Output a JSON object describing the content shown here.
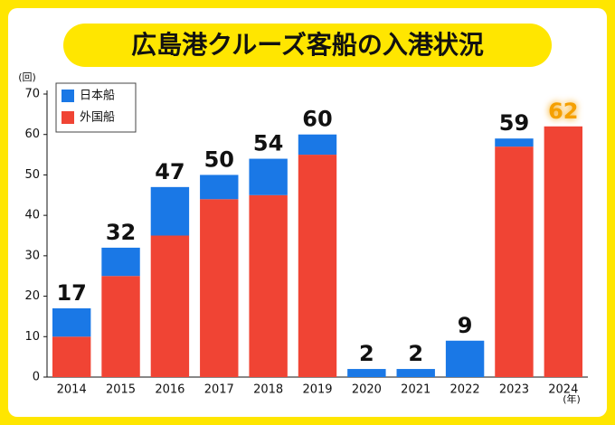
{
  "chart_data": {
    "type": "stacked_bar",
    "title": "広島港クルーズ客船の入港状況",
    "y_unit": "(回)",
    "x_unit": "(年)",
    "categories": [
      "2014",
      "2015",
      "2016",
      "2017",
      "2018",
      "2019",
      "2020",
      "2021",
      "2022",
      "2023",
      "2024"
    ],
    "series": [
      {
        "name": "外国船",
        "color": "#f04434",
        "values": [
          10,
          25,
          35,
          44,
          45,
          55,
          0,
          0,
          0,
          57,
          62
        ]
      },
      {
        "name": "日本船",
        "color": "#1a78e6",
        "values": [
          7,
          7,
          12,
          6,
          9,
          5,
          2,
          2,
          9,
          2,
          0
        ]
      }
    ],
    "totals": [
      17,
      32,
      47,
      50,
      54,
      60,
      2,
      2,
      9,
      59,
      62
    ],
    "highlight_color": "#f5a000",
    "ylim": [
      0,
      70
    ],
    "yticks": [
      0,
      10,
      20,
      30,
      40,
      50,
      60,
      70
    ]
  }
}
